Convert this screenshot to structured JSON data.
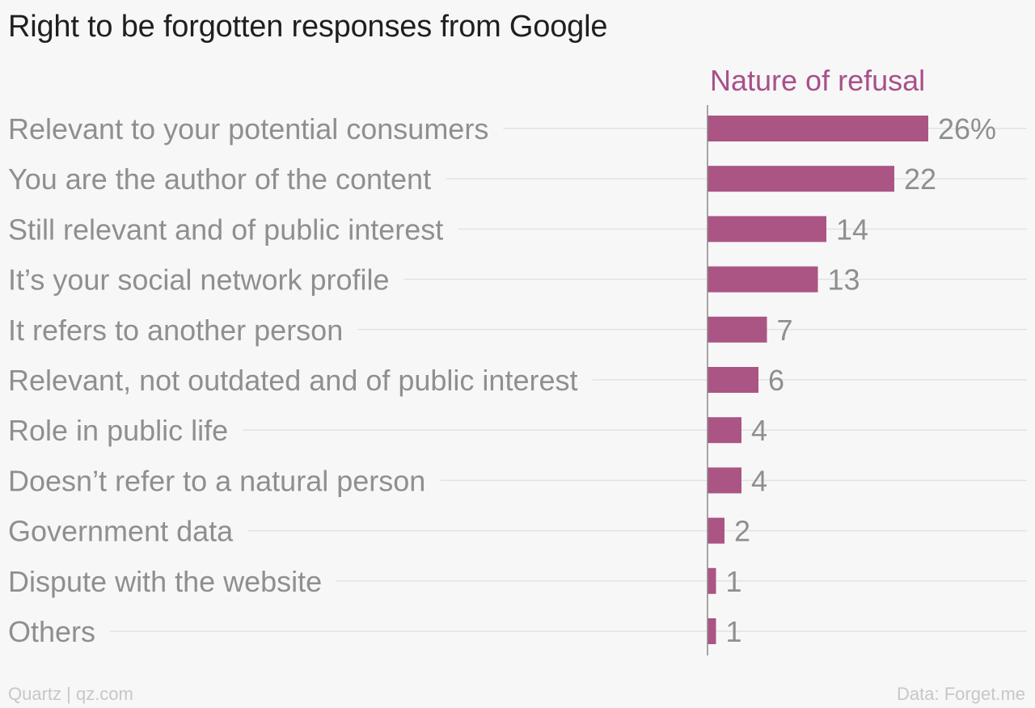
{
  "page": {
    "title": "Right to be forgotten responses from Google",
    "source_left": "Quartz | qz.com",
    "source_right": "Data: Forget.me"
  },
  "colors": {
    "bar": "#ab5585",
    "series_label": "#a8508a",
    "category_label": "#8f8f8f",
    "value_label": "#8f8f8f",
    "guide_line": "#e3e3e3",
    "axis_line": "#8a8a8a",
    "background": "#f7f7f7"
  },
  "chart_data": {
    "type": "bar",
    "orientation": "horizontal",
    "series": [
      {
        "name": "Nature of refusal",
        "values": [
          26,
          22,
          14,
          13,
          7,
          6,
          4,
          4,
          2,
          1,
          1
        ]
      }
    ],
    "categories": [
      "Relevant to your potential consumers",
      "You are the author of the content",
      "Still relevant and of public interest",
      "It’s your social network profile",
      "It refers to another person",
      "Relevant, not outdated and of public interest",
      "Role in public life",
      "Doesn’t refer to a natural person",
      "Government data",
      "Dispute with the website",
      "Others"
    ],
    "value_labels": [
      "26%",
      "22",
      "14",
      "13",
      "7",
      "6",
      "4",
      "4",
      "2",
      "1",
      "1"
    ],
    "unit": "%",
    "xlim": [
      0,
      26
    ],
    "grid": false,
    "legend": "none"
  }
}
